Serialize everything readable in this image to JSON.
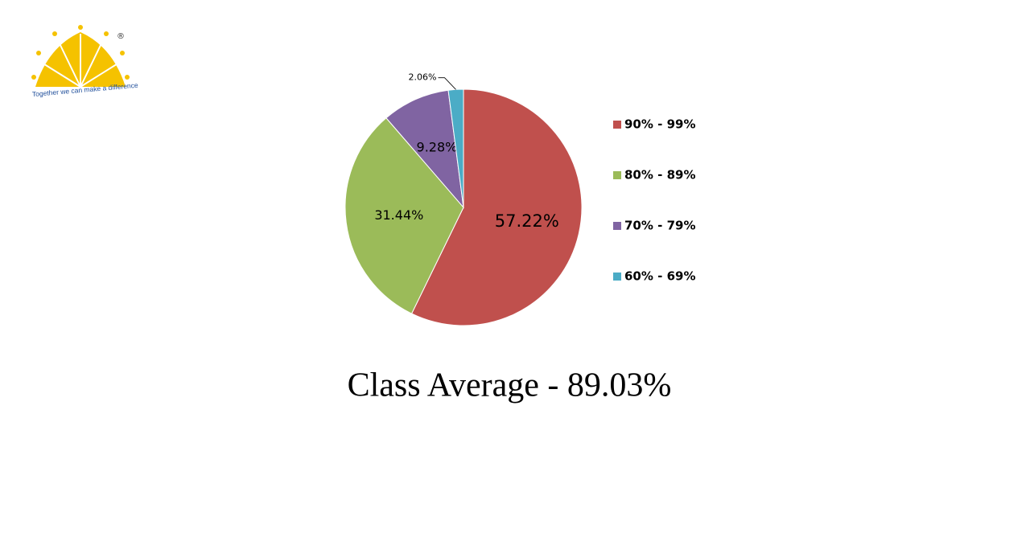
{
  "logo": {
    "mark": "®",
    "tagline": "Together we can make a difference"
  },
  "chart_data": {
    "type": "pie",
    "categories": [
      "90% - 99%",
      "80% - 89%",
      "70% - 79%",
      "60% - 69%"
    ],
    "values": [
      57.22,
      31.44,
      9.28,
      2.06
    ],
    "value_labels": [
      "57.22%",
      "31.44%",
      "9.28%",
      "2.06%"
    ],
    "colors": [
      "#c0504d",
      "#9bbb59",
      "#8064a2",
      "#4bacc6"
    ],
    "legend": "right"
  },
  "caption": "Class Average -  89.03%"
}
